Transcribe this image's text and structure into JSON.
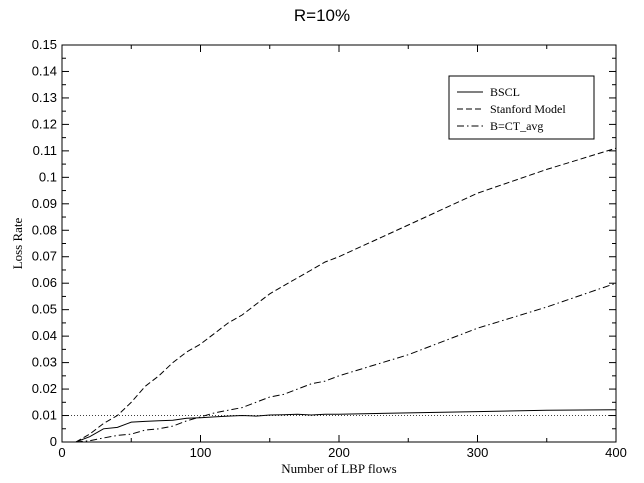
{
  "chart_data": {
    "type": "line",
    "title": "R=10%",
    "xlabel": "Number of LBP flows",
    "ylabel": "Loss Rate",
    "xlim": [
      0,
      400
    ],
    "ylim": [
      0,
      0.15
    ],
    "xticks": [
      0,
      100,
      200,
      300,
      400
    ],
    "xtick_labels": [
      "0",
      "100",
      "200",
      "300",
      "400"
    ],
    "yticks": [
      0,
      0.01,
      0.02,
      0.03,
      0.04,
      0.05,
      0.06,
      0.07,
      0.08,
      0.09,
      0.1,
      0.11,
      0.12,
      0.13,
      0.14,
      0.15
    ],
    "ytick_labels": [
      "0",
      "0.01",
      "0.02",
      "0.03",
      "0.04",
      "0.05",
      "0.06",
      "0.07",
      "0.08",
      "0.09",
      "0.1",
      "0.11",
      "0.12",
      "0.13",
      "0.14",
      "0.15"
    ],
    "grid": false,
    "legend_position": "top-right",
    "reference_line": {
      "y": 0.01,
      "style": "dotted"
    },
    "series": [
      {
        "name": "BSCL",
        "style": "solid",
        "x": [
          10,
          20,
          30,
          40,
          50,
          60,
          70,
          80,
          90,
          100,
          110,
          120,
          130,
          140,
          150,
          160,
          170,
          180,
          190,
          200,
          250,
          300,
          350,
          400
        ],
        "y": [
          0.0,
          0.002,
          0.005,
          0.0055,
          0.0075,
          0.0078,
          0.008,
          0.0082,
          0.009,
          0.0092,
          0.0095,
          0.0098,
          0.01,
          0.0098,
          0.0102,
          0.0103,
          0.0105,
          0.0102,
          0.0105,
          0.0105,
          0.011,
          0.0115,
          0.012,
          0.0122
        ]
      },
      {
        "name": "Stanford Model",
        "style": "dashed",
        "x": [
          10,
          20,
          30,
          40,
          50,
          60,
          70,
          80,
          90,
          100,
          110,
          120,
          130,
          140,
          150,
          160,
          170,
          180,
          190,
          200,
          250,
          300,
          350,
          400
        ],
        "y": [
          0.0,
          0.003,
          0.007,
          0.01,
          0.015,
          0.021,
          0.025,
          0.03,
          0.034,
          0.037,
          0.041,
          0.045,
          0.048,
          0.052,
          0.056,
          0.059,
          0.062,
          0.065,
          0.068,
          0.07,
          0.082,
          0.094,
          0.103,
          0.111
        ]
      },
      {
        "name": "B=CT_avg",
        "style": "dash-dot",
        "x": [
          10,
          20,
          30,
          40,
          50,
          60,
          70,
          80,
          90,
          100,
          110,
          120,
          130,
          140,
          150,
          160,
          170,
          180,
          190,
          200,
          250,
          300,
          350,
          400
        ],
        "y": [
          0.0,
          0.0005,
          0.0015,
          0.0025,
          0.003,
          0.0045,
          0.005,
          0.006,
          0.008,
          0.0095,
          0.011,
          0.012,
          0.013,
          0.015,
          0.017,
          0.018,
          0.02,
          0.022,
          0.023,
          0.025,
          0.033,
          0.043,
          0.051,
          0.06
        ]
      }
    ]
  }
}
